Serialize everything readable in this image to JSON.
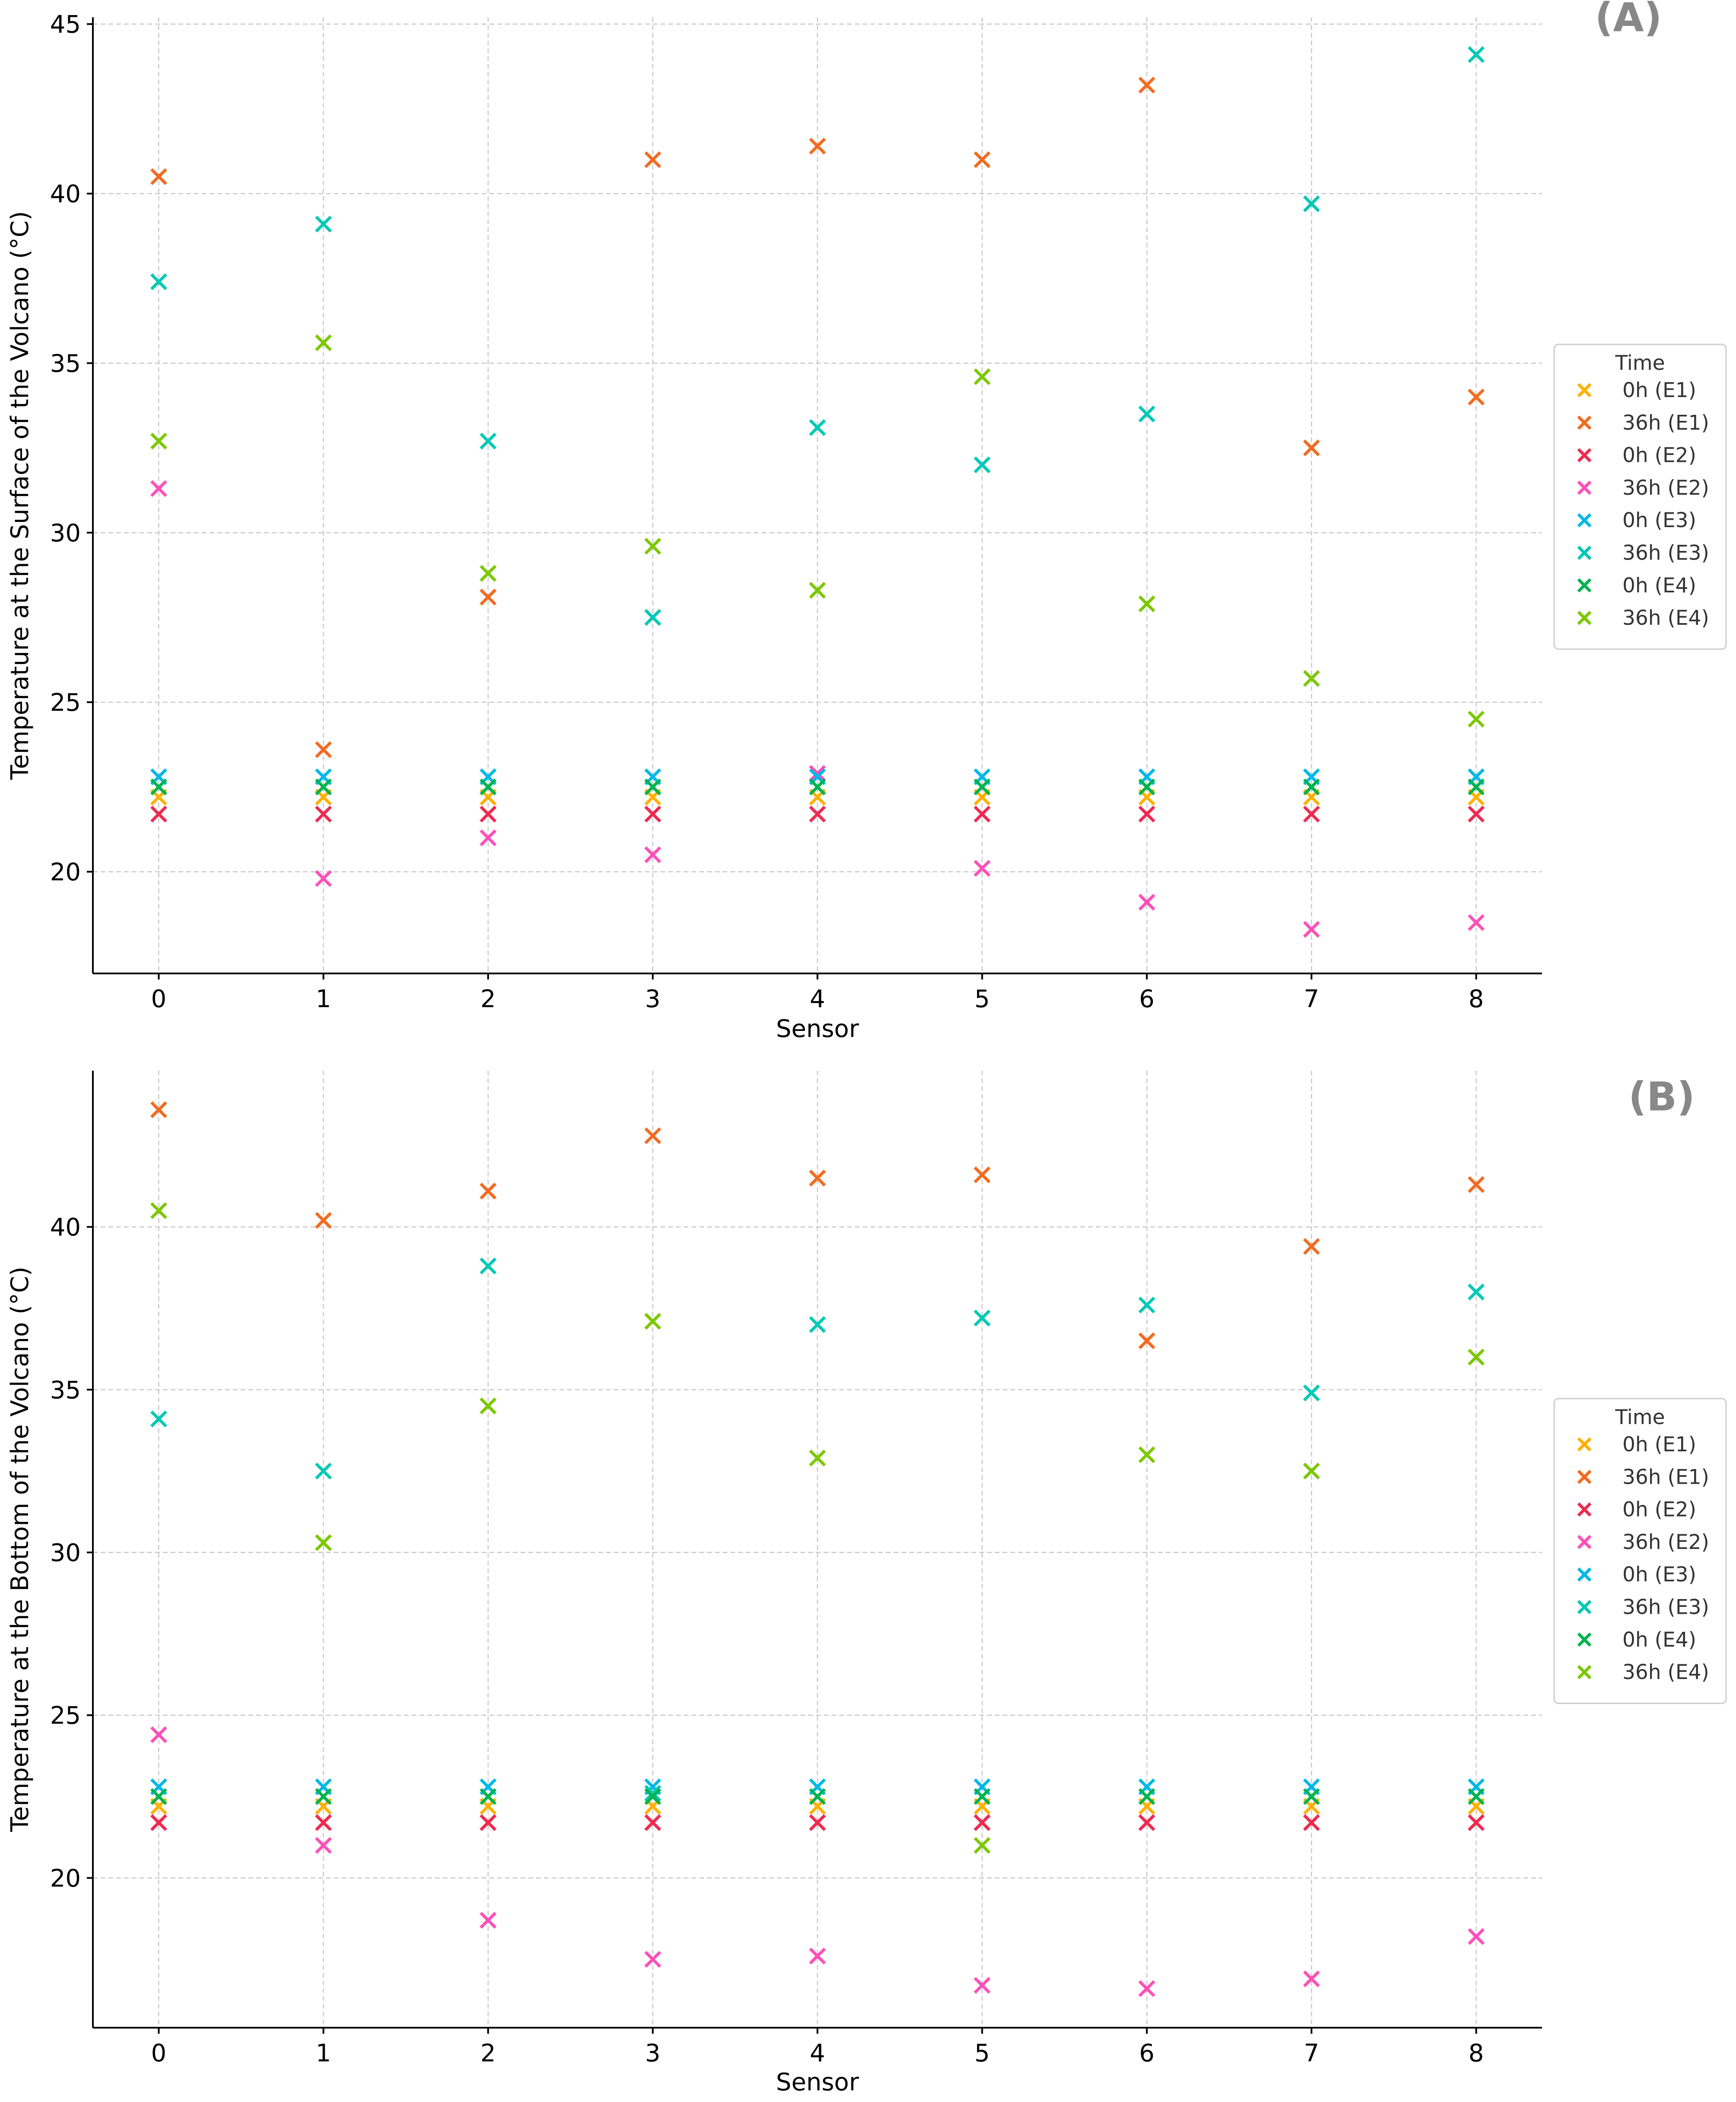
{
  "colors": {
    "0h (E1)": "#FFB000",
    "36h (E1)": "#F46A1F",
    "0h (E2)": "#F0294F",
    "36h (E2)": "#FF4FB8",
    "0h (E3)": "#00B8E6",
    "36h (E3)": "#00C9B5",
    "0h (E4)": "#00B34D",
    "36h (E4)": "#7CC800",
    "grid": "#c8c8c8",
    "axis": "#000000",
    "panel_label": "#888888",
    "legend_border": "#cccccc"
  },
  "chart_data": [
    {
      "type": "scatter",
      "panel_label": "(A)",
      "xlabel": "Sensor",
      "ylabel": "Temperature at the Surface of the Volcano (°C)",
      "x": [
        0,
        1,
        2,
        3,
        4,
        5,
        6,
        7,
        8
      ],
      "xticks": [
        "0",
        "1",
        "2",
        "3",
        "4",
        "5",
        "6",
        "7",
        "8"
      ],
      "xlim": [
        -0.4,
        8.4
      ],
      "ylim": [
        17,
        45.2
      ],
      "yticks": [
        20,
        25,
        30,
        35,
        40,
        45
      ],
      "grid": true,
      "marker": "x",
      "legend": {
        "title": "Time",
        "placement": "right"
      },
      "series": [
        {
          "name": "0h (E1)",
          "values": [
            22.2,
            22.2,
            22.2,
            22.2,
            22.2,
            22.2,
            22.2,
            22.2,
            22.2
          ]
        },
        {
          "name": "36h (E1)",
          "values": [
            40.5,
            23.6,
            28.1,
            41.0,
            41.4,
            41.0,
            43.2,
            32.5,
            34.0
          ]
        },
        {
          "name": "0h (E2)",
          "values": [
            21.7,
            21.7,
            21.7,
            21.7,
            21.7,
            21.7,
            21.7,
            21.7,
            21.7
          ]
        },
        {
          "name": "36h (E2)",
          "values": [
            31.3,
            19.8,
            21.0,
            20.5,
            22.9,
            20.1,
            19.1,
            18.3,
            18.5
          ]
        },
        {
          "name": "0h (E3)",
          "values": [
            22.8,
            22.8,
            22.8,
            22.8,
            22.8,
            22.8,
            22.8,
            22.8,
            22.8
          ]
        },
        {
          "name": "36h (E3)",
          "values": [
            37.4,
            39.1,
            32.7,
            27.5,
            33.1,
            32.0,
            33.5,
            39.7,
            44.1
          ]
        },
        {
          "name": "0h (E4)",
          "values": [
            22.5,
            22.5,
            22.5,
            22.5,
            22.5,
            22.5,
            22.5,
            22.5,
            22.5
          ]
        },
        {
          "name": "36h (E4)",
          "values": [
            32.7,
            35.6,
            28.8,
            29.6,
            28.3,
            34.6,
            27.9,
            25.7,
            24.5
          ]
        }
      ]
    },
    {
      "type": "scatter",
      "panel_label": "(B)",
      "xlabel": "Sensor",
      "ylabel": "Temperature at the Bottom of the Volcano (°C)",
      "x": [
        0,
        1,
        2,
        3,
        4,
        5,
        6,
        7,
        8
      ],
      "xticks": [
        "0",
        "1",
        "2",
        "3",
        "4",
        "5",
        "6",
        "7",
        "8"
      ],
      "xlim": [
        -0.4,
        8.4
      ],
      "ylim": [
        15.4,
        44.8
      ],
      "yticks": [
        20,
        25,
        30,
        35,
        40
      ],
      "grid": true,
      "marker": "x",
      "legend": {
        "title": "Time",
        "placement": "right"
      },
      "series": [
        {
          "name": "0h (E1)",
          "values": [
            22.2,
            22.2,
            22.2,
            22.2,
            22.2,
            22.2,
            22.2,
            22.2,
            22.2
          ]
        },
        {
          "name": "36h (E1)",
          "values": [
            43.6,
            40.2,
            41.1,
            42.8,
            41.5,
            41.6,
            36.5,
            39.4,
            41.3
          ]
        },
        {
          "name": "0h (E2)",
          "values": [
            21.7,
            21.7,
            21.7,
            21.7,
            21.7,
            21.7,
            21.7,
            21.7,
            21.7
          ]
        },
        {
          "name": "36h (E2)",
          "values": [
            24.4,
            21.0,
            18.7,
            17.5,
            17.6,
            16.7,
            16.6,
            16.9,
            18.2
          ]
        },
        {
          "name": "0h (E3)",
          "values": [
            22.8,
            22.8,
            22.8,
            22.8,
            22.8,
            22.8,
            22.8,
            22.8,
            22.8
          ]
        },
        {
          "name": "36h (E3)",
          "values": [
            34.1,
            32.5,
            38.8,
            22.6,
            37.0,
            37.2,
            37.6,
            34.9,
            38.0
          ]
        },
        {
          "name": "0h (E4)",
          "values": [
            22.5,
            22.5,
            22.5,
            22.5,
            22.5,
            22.5,
            22.5,
            22.5,
            22.5
          ]
        },
        {
          "name": "36h (E4)",
          "values": [
            40.5,
            30.3,
            34.5,
            37.1,
            32.9,
            21.0,
            33.0,
            32.5,
            36.0
          ]
        }
      ]
    }
  ]
}
